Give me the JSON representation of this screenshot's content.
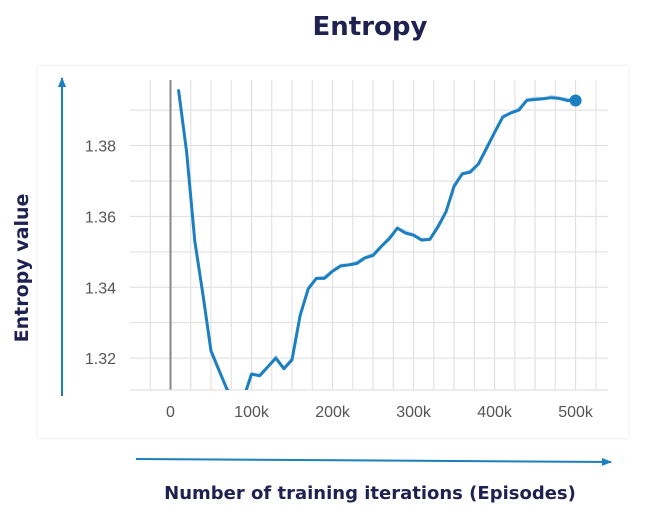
{
  "chart_data": {
    "type": "line",
    "title": "Entropy",
    "xlabel": "Number of training iterations (Episodes)",
    "ylabel": "Entropy value",
    "xlim": [
      -50000,
      540000
    ],
    "ylim": [
      1.311,
      1.3985
    ],
    "x_ticks": [
      0,
      100000,
      200000,
      300000,
      400000,
      500000
    ],
    "x_tick_labels": [
      "0",
      "100k",
      "200k",
      "300k",
      "400k",
      "500k"
    ],
    "y_ticks": [
      1.32,
      1.34,
      1.36,
      1.38
    ],
    "y_tick_labels": [
      "1.32",
      "1.34",
      "1.36",
      "1.38"
    ],
    "grid": true,
    "series": [
      {
        "color": "#1c7fc0",
        "raw_color": "#bcd6ec",
        "x": [
          10000,
          20000,
          30000,
          40000,
          50000,
          60000,
          70000,
          80000,
          90000,
          100000,
          110000,
          120000,
          130000,
          140000,
          150000,
          160000,
          170000,
          180000,
          190000,
          200000,
          210000,
          220000,
          230000,
          240000,
          250000,
          260000,
          270000,
          280000,
          290000,
          300000,
          310000,
          320000,
          330000,
          340000,
          350000,
          360000,
          370000,
          380000,
          390000,
          400000,
          410000,
          420000,
          430000,
          440000,
          450000,
          460000,
          470000,
          480000,
          490000,
          500000
        ],
        "y": [
          1.3955,
          1.378,
          1.353,
          1.338,
          1.322,
          1.3165,
          1.311,
          1.309,
          1.3085,
          1.3155,
          1.315,
          1.3175,
          1.32,
          1.317,
          1.3195,
          1.332,
          1.3395,
          1.3425,
          1.3425,
          1.3445,
          1.346,
          1.3463,
          1.3467,
          1.3483,
          1.349,
          1.3515,
          1.3537,
          1.3567,
          1.3553,
          1.3547,
          1.3533,
          1.3535,
          1.357,
          1.3613,
          1.3685,
          1.372,
          1.3725,
          1.3748,
          1.3792,
          1.3837,
          1.388,
          1.3892,
          1.39,
          1.3928,
          1.393,
          1.3932,
          1.3935,
          1.3933,
          1.3927,
          1.3927
        ]
      }
    ]
  }
}
